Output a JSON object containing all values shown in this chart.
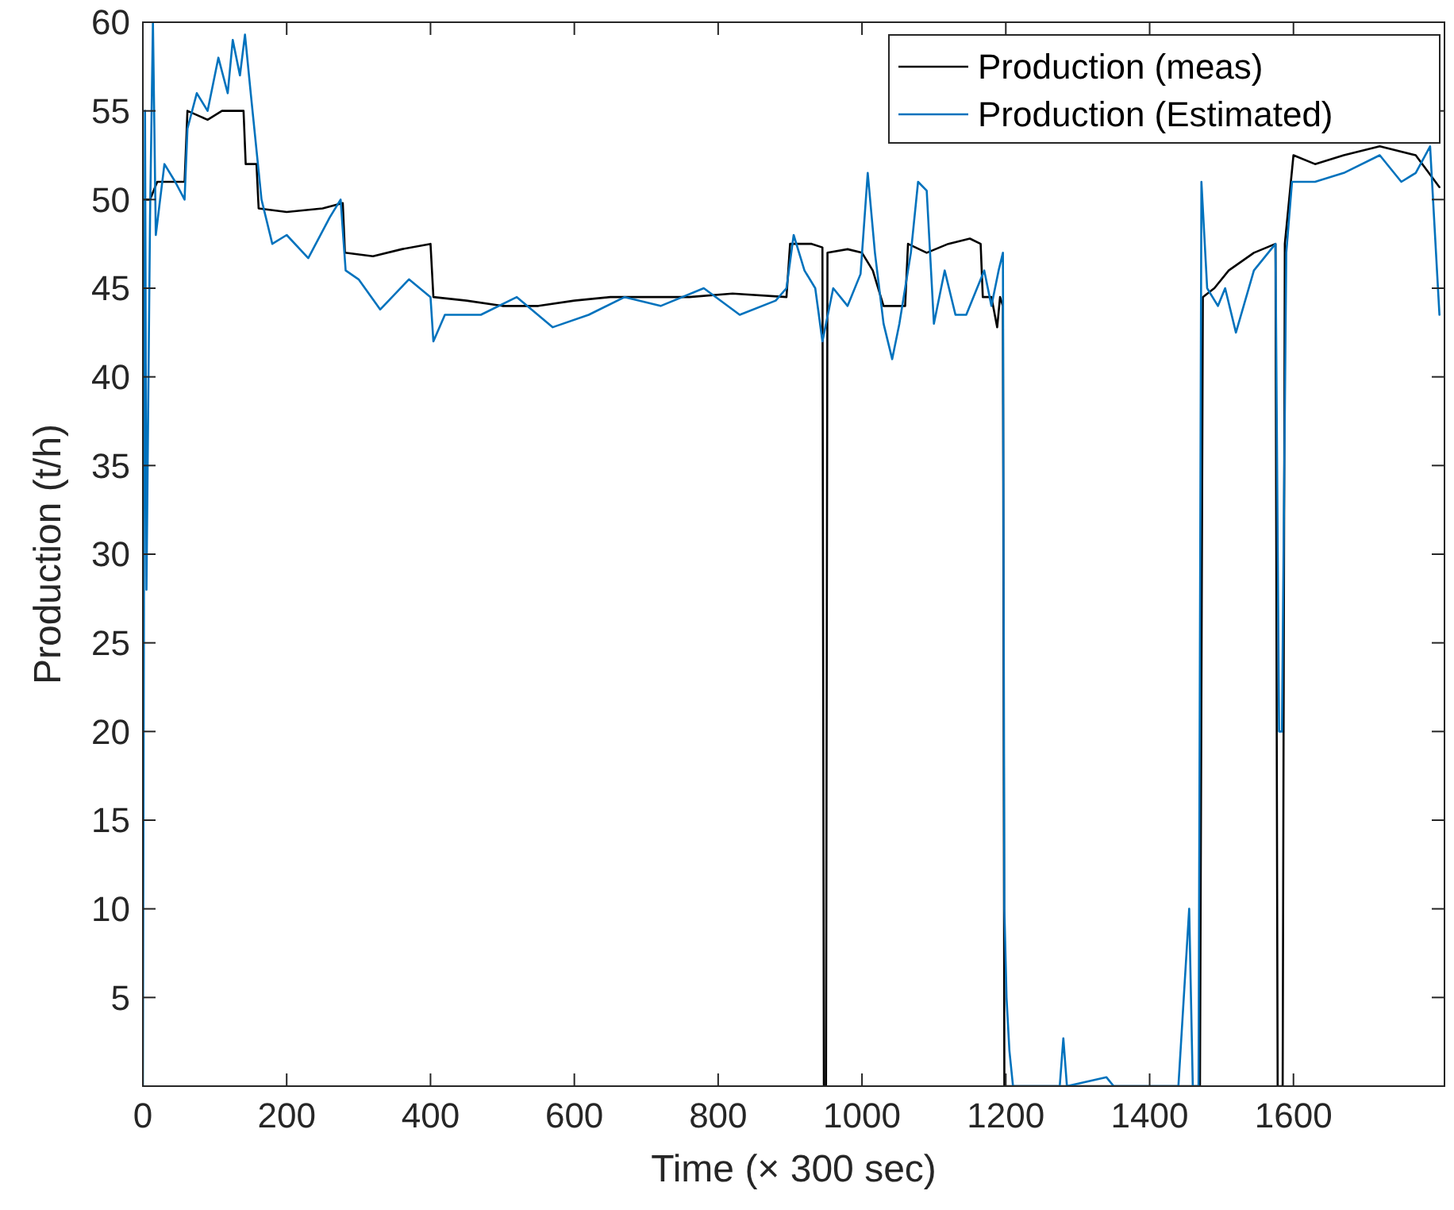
{
  "chart_data": {
    "type": "line",
    "xlabel": "Time (× 300 sec)",
    "ylabel": "Production (t/h)",
    "xlim": [
      0,
      1810
    ],
    "xticks": [
      0,
      200,
      400,
      600,
      800,
      1000,
      1200,
      1400,
      1600
    ],
    "ylim": [
      0,
      60
    ],
    "yticks": [
      5,
      10,
      15,
      20,
      25,
      30,
      35,
      40,
      45,
      50,
      55,
      60
    ],
    "grid": false,
    "legend": "top right",
    "line_style": "solid",
    "marker": "none",
    "series": [
      {
        "name": "Production (meas)",
        "color": "#000000",
        "x": [
          0,
          10,
          20,
          40,
          58,
          62,
          90,
          110,
          140,
          143,
          158,
          161,
          200,
          250,
          278,
          281,
          320,
          360,
          400,
          404,
          450,
          500,
          550,
          600,
          650,
          700,
          760,
          820,
          895,
          900,
          930,
          945,
          947,
          950,
          952,
          980,
          1000,
          1015,
          1030,
          1060,
          1064,
          1090,
          1120,
          1150,
          1165,
          1168,
          1180,
          1188,
          1192,
          1196,
          1198,
          1470,
          1474,
          1490,
          1510,
          1545,
          1575,
          1578,
          1585,
          1588,
          1600,
          1630,
          1670,
          1720,
          1770,
          1803
        ],
        "values": [
          50,
          50,
          51,
          51,
          51,
          55,
          54.5,
          55,
          55,
          52,
          52,
          49.5,
          49.3,
          49.5,
          49.8,
          47,
          46.8,
          47.2,
          47.5,
          44.5,
          44.3,
          44,
          44,
          44.3,
          44.5,
          44.5,
          44.5,
          44.7,
          44.5,
          47.5,
          47.5,
          47.3,
          0,
          0,
          47,
          47.2,
          47,
          46,
          44,
          44,
          47.5,
          47,
          47.5,
          47.8,
          47.5,
          44.5,
          44.5,
          42.8,
          44.5,
          44,
          0,
          0,
          44.5,
          45,
          46,
          47,
          47.5,
          0,
          0,
          47.5,
          52.5,
          52,
          52.5,
          53,
          52.5,
          50.7
        ]
      },
      {
        "name": "Production (Estimated)",
        "color": "#0072bd",
        "x": [
          0,
          3,
          5,
          10,
          14,
          18,
          30,
          45,
          58,
          62,
          75,
          90,
          105,
          118,
          125,
          135,
          142,
          150,
          160,
          165,
          180,
          200,
          230,
          260,
          275,
          282,
          300,
          330,
          370,
          400,
          404,
          420,
          470,
          520,
          570,
          620,
          670,
          720,
          780,
          830,
          880,
          895,
          905,
          920,
          935,
          945,
          960,
          980,
          998,
          1008,
          1018,
          1030,
          1042,
          1052,
          1060,
          1068,
          1078,
          1090,
          1100,
          1115,
          1130,
          1145,
          1160,
          1170,
          1180,
          1190,
          1196,
          1198,
          1201,
          1205,
          1210,
          1275,
          1280,
          1285,
          1340,
          1350,
          1440,
          1455,
          1460,
          1468,
          1472,
          1480,
          1495,
          1505,
          1520,
          1545,
          1575,
          1580,
          1584,
          1590,
          1598,
          1630,
          1670,
          1720,
          1750,
          1770,
          1790,
          1803
        ],
        "values": [
          0,
          55,
          28,
          49,
          60,
          48,
          52,
          51,
          50,
          54,
          56,
          55,
          58,
          56,
          59,
          57,
          59.3,
          56,
          52,
          50,
          47.5,
          48,
          46.7,
          49,
          50,
          46,
          45.5,
          43.8,
          45.5,
          44.5,
          42,
          43.5,
          43.5,
          44.5,
          42.8,
          43.5,
          44.5,
          44,
          45,
          43.5,
          44.3,
          45,
          48,
          46,
          45,
          42,
          45,
          44,
          45.8,
          51.5,
          47,
          43,
          41,
          43,
          45,
          47,
          51,
          50.5,
          43,
          46,
          43.5,
          43.5,
          45,
          46,
          44,
          46,
          47,
          10,
          5,
          2,
          0,
          0,
          2.7,
          0,
          0.5,
          0,
          0,
          10,
          0,
          0,
          51,
          45,
          44,
          45,
          42.5,
          46,
          47.5,
          20,
          20,
          47,
          51,
          51,
          51.5,
          52.5,
          51,
          51.5,
          53,
          43.5
        ]
      }
    ]
  }
}
